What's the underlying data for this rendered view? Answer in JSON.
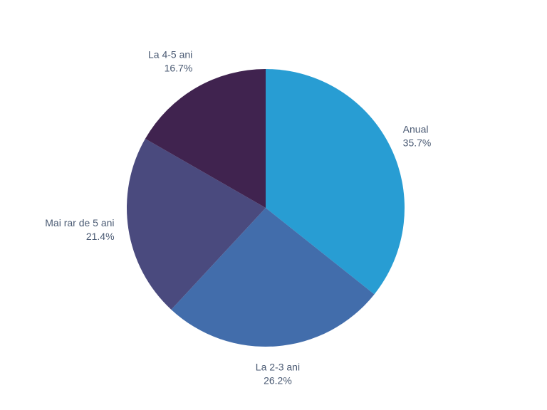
{
  "chart_data": {
    "type": "pie",
    "title": "",
    "categories": [
      "Anual",
      "La 2-3 ani",
      "Mai rar de 5 ani",
      "La 4-5 ani"
    ],
    "values": [
      35.7,
      26.2,
      21.4,
      16.7
    ],
    "value_labels": [
      "35.7%",
      "26.2%",
      "21.4%",
      "16.7%"
    ],
    "colors": [
      "#289dd3",
      "#426dab",
      "#4a4a7e",
      "#40234f"
    ],
    "start_angle": "12 o'clock",
    "direction": "clockwise",
    "legend": "none (labels outside slices)"
  }
}
